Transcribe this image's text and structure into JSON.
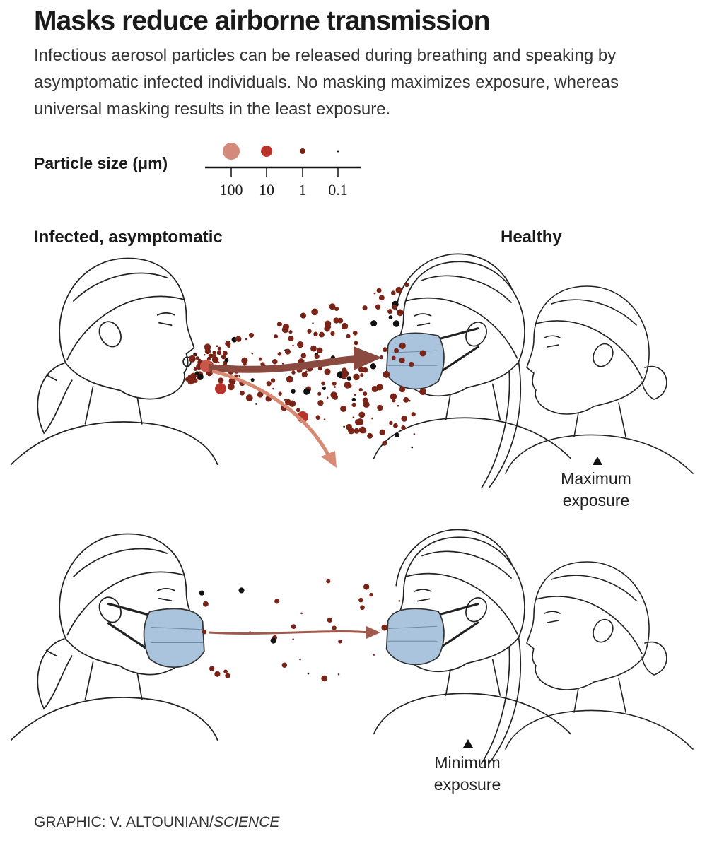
{
  "header": {
    "title": "Masks reduce airborne transmission",
    "subtitle": "Infectious aerosol particles can be released during breathing and speaking by asymptomatic infected individuals. No masking maximizes exposure, whereas universal masking results in the least exposure."
  },
  "legend": {
    "label": "Particle size (μm)",
    "sizes": [
      "100",
      "10",
      "1",
      "0.1"
    ]
  },
  "labels": {
    "infected": "Infected, asymptomatic",
    "healthy": "Healthy"
  },
  "panels": [
    {
      "exposure": "Maximum exposure"
    },
    {
      "exposure": "Minimum exposure"
    }
  ],
  "credit": {
    "text": "GRAPHIC: V. ALTOUNIAN/",
    "publication": "SCIENCE"
  }
}
